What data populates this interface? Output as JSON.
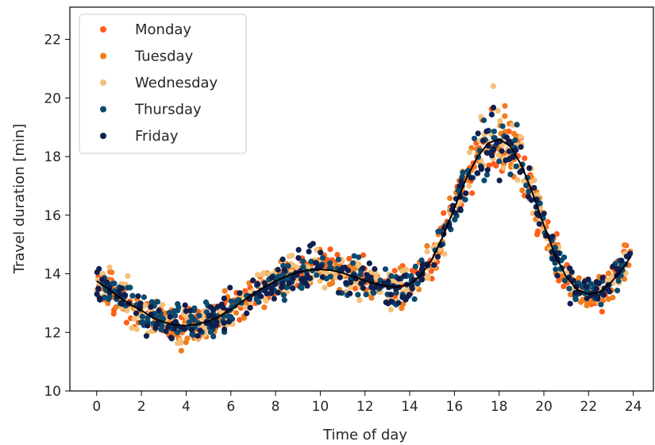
{
  "chart_data": {
    "type": "scatter",
    "xlabel": "Time of day",
    "ylabel": "Travel duration [min]",
    "xlim": [
      -1.2,
      24.9
    ],
    "ylim": [
      10,
      23.1
    ],
    "xticks": [
      0,
      2,
      4,
      6,
      8,
      10,
      12,
      14,
      16,
      18,
      20,
      22,
      24
    ],
    "yticks": [
      10,
      12,
      14,
      16,
      18,
      20,
      22
    ],
    "grid": false,
    "legend_position": "top-left",
    "series": [
      {
        "name": "Monday",
        "color": "#ff5c1a"
      },
      {
        "name": "Tuesday",
        "color": "#f07d1e"
      },
      {
        "name": "Wednesday",
        "color": "#f5c07a"
      },
      {
        "name": "Thursday",
        "color": "#0b4a6e"
      },
      {
        "name": "Friday",
        "color": "#0f1f4f"
      }
    ],
    "trend": {
      "color": "#000000",
      "points": [
        [
          0,
          13.75
        ],
        [
          0.5,
          13.5
        ],
        [
          1,
          13.2
        ],
        [
          1.5,
          12.95
        ],
        [
          2,
          12.75
        ],
        [
          2.5,
          12.5
        ],
        [
          3,
          12.35
        ],
        [
          3.5,
          12.25
        ],
        [
          4,
          12.23
        ],
        [
          4.5,
          12.28
        ],
        [
          5,
          12.38
        ],
        [
          5.5,
          12.55
        ],
        [
          6,
          12.78
        ],
        [
          6.5,
          13.05
        ],
        [
          7,
          13.3
        ],
        [
          7.5,
          13.55
        ],
        [
          8,
          13.75
        ],
        [
          8.5,
          13.92
        ],
        [
          9,
          14.05
        ],
        [
          9.5,
          14.13
        ],
        [
          10,
          14.15
        ],
        [
          10.5,
          14.12
        ],
        [
          11,
          14.03
        ],
        [
          11.5,
          13.9
        ],
        [
          12,
          13.77
        ],
        [
          12.5,
          13.65
        ],
        [
          13,
          13.57
        ],
        [
          13.5,
          13.55
        ],
        [
          14,
          13.65
        ],
        [
          14.5,
          13.95
        ],
        [
          15,
          14.5
        ],
        [
          15.5,
          15.3
        ],
        [
          16,
          16.25
        ],
        [
          16.5,
          17.2
        ],
        [
          17,
          17.95
        ],
        [
          17.5,
          18.45
        ],
        [
          18,
          18.6
        ],
        [
          18.5,
          18.35
        ],
        [
          19,
          17.7
        ],
        [
          19.5,
          16.75
        ],
        [
          20,
          15.65
        ],
        [
          20.5,
          14.65
        ],
        [
          21,
          13.9
        ],
        [
          21.5,
          13.45
        ],
        [
          22,
          13.3
        ],
        [
          22.5,
          13.38
        ],
        [
          23,
          13.7
        ],
        [
          23.5,
          14.15
        ],
        [
          23.9,
          14.6
        ]
      ]
    },
    "scatter_model": {
      "x_range": [
        0,
        23.9
      ],
      "noise_min": 0.45,
      "peak_center": 18,
      "peak_width": 1.5,
      "peak_extra": 0.45
    }
  }
}
